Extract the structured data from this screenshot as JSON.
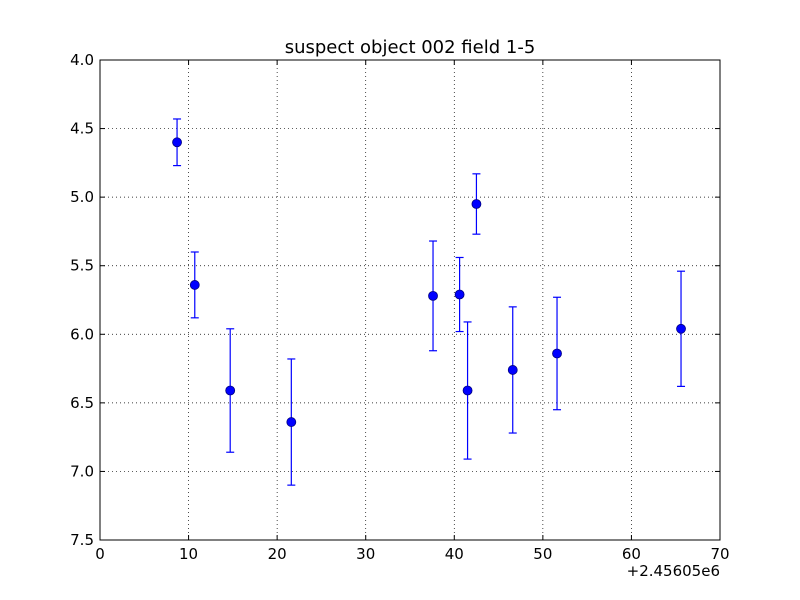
{
  "chart_data": {
    "type": "scatter",
    "title": "suspect object 002 field 1-5",
    "xlabel": "",
    "ylabel": "",
    "x_offset_label": "+2.45605e6",
    "xlim": [
      0,
      70
    ],
    "ylim": [
      7.5,
      4.0
    ],
    "y_inverted": true,
    "grid": true,
    "x_ticks": [
      0,
      10,
      20,
      30,
      40,
      50,
      60,
      70
    ],
    "x_tick_labels": [
      "0",
      "10",
      "20",
      "30",
      "40",
      "50",
      "60",
      "70"
    ],
    "y_ticks": [
      4.0,
      4.5,
      5.0,
      5.5,
      6.0,
      6.5,
      7.0,
      7.5
    ],
    "y_tick_labels": [
      "4.0",
      "4.5",
      "5.0",
      "5.5",
      "6.0",
      "6.5",
      "7.0",
      "7.5"
    ],
    "series": [
      {
        "color": "#0000ff",
        "marker": "circle",
        "points": [
          {
            "x": 8.7,
            "y": 4.6,
            "yerr": 0.17
          },
          {
            "x": 10.7,
            "y": 5.64,
            "yerr": 0.24
          },
          {
            "x": 14.7,
            "y": 6.41,
            "yerr": 0.45
          },
          {
            "x": 21.6,
            "y": 6.64,
            "yerr": 0.46
          },
          {
            "x": 37.6,
            "y": 5.72,
            "yerr": 0.4
          },
          {
            "x": 40.6,
            "y": 5.71,
            "yerr": 0.27
          },
          {
            "x": 41.5,
            "y": 6.41,
            "yerr": 0.5
          },
          {
            "x": 42.5,
            "y": 5.05,
            "yerr": 0.22
          },
          {
            "x": 46.6,
            "y": 6.26,
            "yerr": 0.46
          },
          {
            "x": 51.6,
            "y": 6.14,
            "yerr": 0.41
          },
          {
            "x": 65.6,
            "y": 5.96,
            "yerr": 0.42
          }
        ]
      }
    ]
  }
}
